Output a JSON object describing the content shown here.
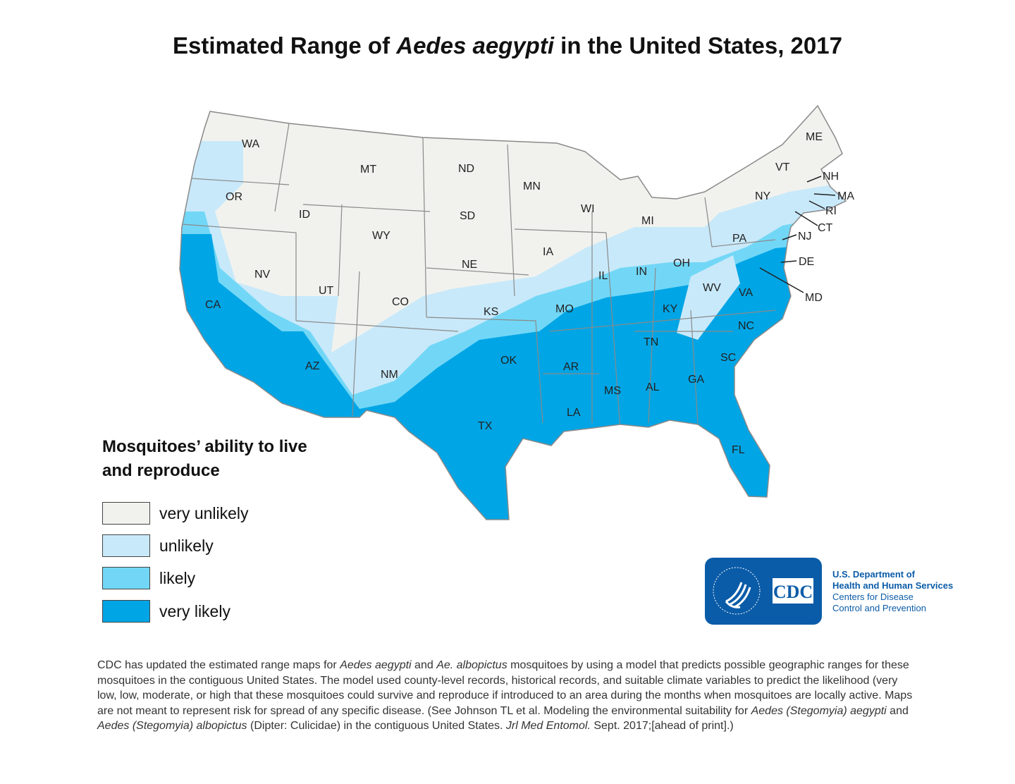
{
  "title": {
    "pre": "Estimated Range of ",
    "italic": "Aedes aegypti",
    "post": " in the United States, 2017"
  },
  "colors": {
    "very_unlikely": "#f1f2ee",
    "unlikely": "#c8e9fa",
    "likely": "#72d7f6",
    "very_likely": "#00a5e5",
    "border": "#8a8a8a",
    "cdc_blue": "#0b5ca8"
  },
  "states": [
    "WA",
    "OR",
    "CA",
    "NV",
    "ID",
    "MT",
    "WY",
    "UT",
    "AZ",
    "CO",
    "NM",
    "ND",
    "SD",
    "NE",
    "KS",
    "OK",
    "TX",
    "MN",
    "IA",
    "MO",
    "AR",
    "LA",
    "WI",
    "IL",
    "MI",
    "IN",
    "OH",
    "KY",
    "TN",
    "MS",
    "AL",
    "GA",
    "FL",
    "SC",
    "NC",
    "VA",
    "WV",
    "PA",
    "NY",
    "VT",
    "ME",
    "NH",
    "MA",
    "RI",
    "CT",
    "NJ",
    "DE",
    "MD"
  ],
  "legend": {
    "title": "Mosquitoes’ ability to live and reproduce",
    "items": [
      {
        "label": "very unlikely",
        "color": "#f1f2ee"
      },
      {
        "label": "unlikely",
        "color": "#c8e9fa"
      },
      {
        "label": "likely",
        "color": "#72d7f6"
      },
      {
        "label": "very likely",
        "color": "#00a5e5"
      }
    ]
  },
  "logo": {
    "text": "CDC",
    "seal": "DEPARTMENT OF HEALTH & HUMAN SERVICES USA",
    "line1": "U.S. Department of",
    "line2": "Health and Human Services",
    "line3": "Centers for Disease",
    "line4": "Control and Prevention"
  },
  "note": [
    {
      "t": "CDC has updated the estimated range maps for "
    },
    {
      "t": "Aedes aegypti",
      "i": true
    },
    {
      "t": " and "
    },
    {
      "t": "Ae. albopictus",
      "i": true
    },
    {
      "t": " mosquitoes by using a model that predicts possible geographic ranges for these mosquitoes in the contiguous United States. The model used county-level records, historical records, and suitable climate variables to predict the likelihood (very low, low, moderate, or high that these mosquitoes could survive and reproduce if introduced to an area during the months when mosquitoes are locally active. Maps are not meant to represent risk for spread of any specific disease. (See Johnson TL et al. Modeling the environmental suitability for "
    },
    {
      "t": "Aedes (Stegomyia) aegypti",
      "i": true
    },
    {
      "t": " and "
    },
    {
      "t": "Aedes (Stegomyia) albopictus",
      "i": true
    },
    {
      "t": " (Dipter: Culicidae) in the contiguous United States. "
    },
    {
      "t": "Jrl Med Entomol.",
      "i": true
    },
    {
      "t": " Sept. 2017;[ahead of print].)"
    }
  ]
}
